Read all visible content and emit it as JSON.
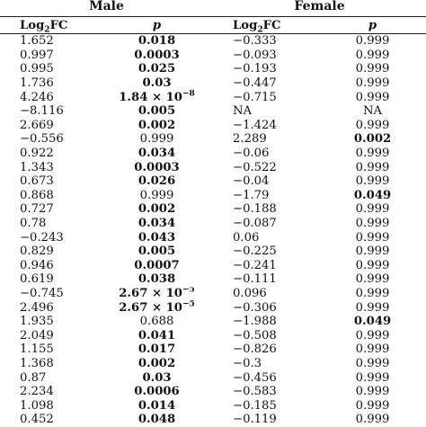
{
  "groups": {
    "male": "Male",
    "female": "Female"
  },
  "headers": {
    "male_fc_base": "Log",
    "male_fc_sub": "2",
    "male_fc_rest": "FC",
    "male_p": "p",
    "female_fc_base": "Log",
    "female_fc_sub": "2",
    "female_fc_rest": "FC",
    "female_p": "p"
  },
  "rows": [
    {
      "male_fc": "1.652",
      "male_p": "0.018",
      "male_p_bold": true,
      "female_fc": "−0.333",
      "female_p": "0.999",
      "female_p_bold": false
    },
    {
      "male_fc": "0.997",
      "male_p": "0.0003",
      "male_p_bold": true,
      "female_fc": "−0.093",
      "female_p": "0.999",
      "female_p_bold": false
    },
    {
      "male_fc": "0.995",
      "male_p": "0.025",
      "male_p_bold": true,
      "female_fc": "−0.193",
      "female_p": "0.999",
      "female_p_bold": false
    },
    {
      "male_fc": "1.736",
      "male_p": "0.03",
      "male_p_bold": true,
      "female_fc": "−0.447",
      "female_p": "0.999",
      "female_p_bold": false
    },
    {
      "male_fc": "4.246",
      "male_p_base": "1.84 × 10",
      "male_p_exp": "−8",
      "male_p_bold": true,
      "female_fc": "−0.715",
      "female_p": "0.999",
      "female_p_bold": false
    },
    {
      "male_fc": "−8.116",
      "male_p": "0.005",
      "male_p_bold": true,
      "female_fc": "NA",
      "female_p": "NA",
      "female_p_bold": false
    },
    {
      "male_fc": "2.669",
      "male_p": "0.002",
      "male_p_bold": true,
      "female_fc": "−1.424",
      "female_p": "0.999",
      "female_p_bold": false
    },
    {
      "male_fc": "−0.556",
      "male_p": "0.999",
      "male_p_bold": false,
      "female_fc": "2.289",
      "female_p": "0.002",
      "female_p_bold": true
    },
    {
      "male_fc": "0.922",
      "male_p": "0.034",
      "male_p_bold": true,
      "female_fc": "−0.06",
      "female_p": "0.999",
      "female_p_bold": false
    },
    {
      "male_fc": "1.343",
      "male_p": "0.0003",
      "male_p_bold": true,
      "female_fc": "−0.522",
      "female_p": "0.999",
      "female_p_bold": false
    },
    {
      "male_fc": "0.673",
      "male_p": "0.026",
      "male_p_bold": true,
      "female_fc": "−0.04",
      "female_p": "0.999",
      "female_p_bold": false
    },
    {
      "male_fc": "0.868",
      "male_p": "0.999",
      "male_p_bold": false,
      "female_fc": "−1.79",
      "female_p": "0.049",
      "female_p_bold": true
    },
    {
      "male_fc": "0.727",
      "male_p": "0.002",
      "male_p_bold": true,
      "female_fc": "−0.188",
      "female_p": "0.999",
      "female_p_bold": false
    },
    {
      "male_fc": "0.78",
      "male_p": "0.034",
      "male_p_bold": true,
      "female_fc": "−0.087",
      "female_p": "0.999",
      "female_p_bold": false
    },
    {
      "male_fc": "−0.243",
      "male_p": "0.043",
      "male_p_bold": true,
      "female_fc": "0.06",
      "female_p": "0.999",
      "female_p_bold": false
    },
    {
      "male_fc": "0.829",
      "male_p": "0.005",
      "male_p_bold": true,
      "female_fc": "−0.225",
      "female_p": "0.999",
      "female_p_bold": false
    },
    {
      "male_fc": "0.946",
      "male_p": "0.0007",
      "male_p_bold": true,
      "female_fc": "−0.241",
      "female_p": "0.999",
      "female_p_bold": false
    },
    {
      "male_fc": "0.619",
      "male_p": "0.038",
      "male_p_bold": true,
      "female_fc": "−0.111",
      "female_p": "0.999",
      "female_p_bold": false
    },
    {
      "male_fc": "−0.745",
      "male_p_base": "2.67 × 10",
      "male_p_exp": "−5",
      "male_p_bold": true,
      "female_fc": "0.096",
      "female_p": "0.999",
      "female_p_bold": false
    },
    {
      "male_fc": "2.496",
      "male_p_base": "2.67 × 10",
      "male_p_exp": "−5",
      "male_p_bold": true,
      "female_fc": "−0.306",
      "female_p": "0.999",
      "female_p_bold": false
    },
    {
      "male_fc": "1.935",
      "male_p": "0.688",
      "male_p_bold": false,
      "female_fc": "−1.988",
      "female_p": "0.049",
      "female_p_bold": true
    },
    {
      "male_fc": "2.049",
      "male_p": "0.041",
      "male_p_bold": true,
      "female_fc": "−0.508",
      "female_p": "0.999",
      "female_p_bold": false
    },
    {
      "male_fc": "1.155",
      "male_p": "0.017",
      "male_p_bold": true,
      "female_fc": "−0.826",
      "female_p": "0.999",
      "female_p_bold": false
    },
    {
      "male_fc": "1.368",
      "male_p": "0.002",
      "male_p_bold": true,
      "female_fc": "−0.3",
      "female_p": "0.999",
      "female_p_bold": false
    },
    {
      "male_fc": "0.87",
      "male_p": "0.03",
      "male_p_bold": true,
      "female_fc": "−0.456",
      "female_p": "0.999",
      "female_p_bold": false
    },
    {
      "male_fc": "2.234",
      "male_p": "0.0006",
      "male_p_bold": true,
      "female_fc": "−0.583",
      "female_p": "0.999",
      "female_p_bold": false
    },
    {
      "male_fc": "1.098",
      "male_p": "0.014",
      "male_p_bold": true,
      "female_fc": "−0.185",
      "female_p": "0.999",
      "female_p_bold": false
    },
    {
      "male_fc": "0.452",
      "male_p": "0.048",
      "male_p_bold": true,
      "female_fc": "−0.119",
      "female_p": "0.999",
      "female_p_bold": false
    }
  ]
}
